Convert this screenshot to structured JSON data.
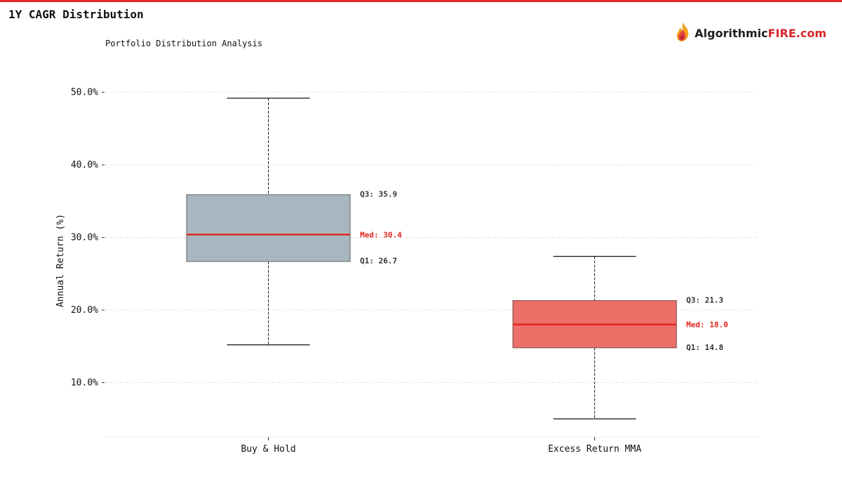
{
  "header": {
    "title": "1Y CAGR Distribution",
    "subtitle": "Portfolio Distribution Analysis",
    "logo": {
      "main": "Algorithmic",
      "accent": "FIRE.com",
      "accent_color": "#d7262b",
      "icon": "flame-logo-icon"
    }
  },
  "colors": {
    "top_rule": "#e3262a",
    "median_line": "#e0261f",
    "grid": "#dddddd"
  },
  "chart_data": {
    "type": "box",
    "title": "",
    "xlabel": "",
    "ylabel": "Annual Return (%)",
    "ylim": [
      2.5,
      55
    ],
    "y_ticks": [
      10,
      20,
      30,
      40,
      50
    ],
    "y_tick_labels": [
      "10.0%",
      "20.0%",
      "30.0%",
      "40.0%",
      "50.0%"
    ],
    "grid": true,
    "legend": "none",
    "categories": [
      "Buy & Hold",
      "Excess Return MMA"
    ],
    "series": [
      {
        "whisker_low": 15.2,
        "q1": 26.7,
        "median": 30.4,
        "q3": 35.9,
        "whisker_high": 49.2,
        "fill": "#a8b7bf",
        "edge": "#6e777c",
        "labels": {
          "q3": "Q3: 35.9",
          "median": "Med: 30.4",
          "q1": "Q1: 26.7"
        }
      },
      {
        "whisker_low": 5.0,
        "q1": 14.8,
        "median": 18.0,
        "q3": 21.3,
        "whisker_high": 27.4,
        "fill": "#ec6f68",
        "edge": "#8a5552",
        "labels": {
          "q3": "Q3: 21.3",
          "median": "Med: 18.0",
          "q1": "Q1: 14.8"
        }
      }
    ]
  }
}
